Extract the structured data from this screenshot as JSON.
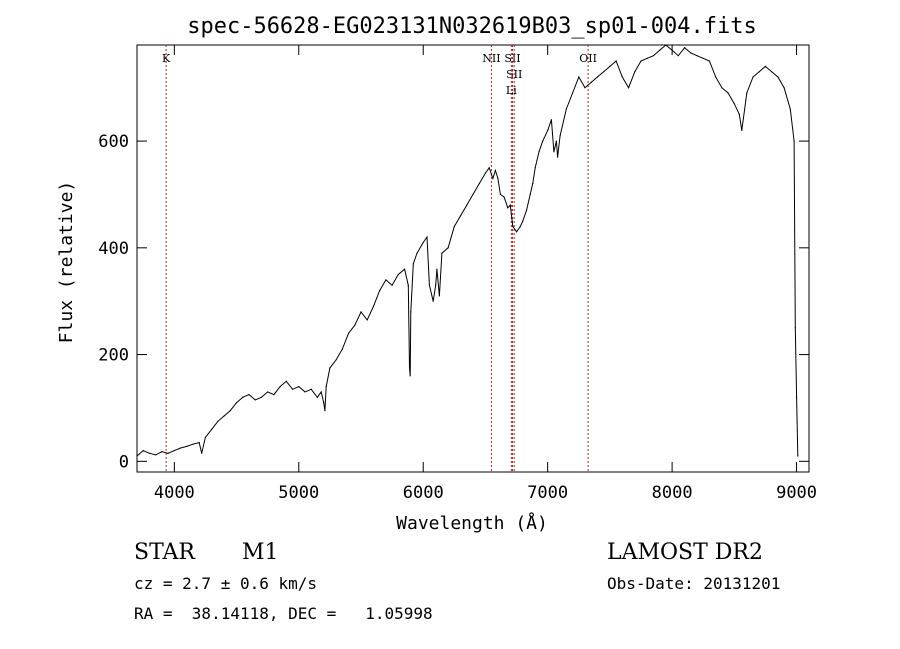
{
  "chart_data": {
    "type": "line",
    "title": "spec-56628-EG023131N032619B03_sp01-004.fits",
    "xlabel": "Wavelength (Å)",
    "ylabel": "Flux (relative)",
    "xlim": [
      3700,
      9100
    ],
    "ylim": [
      -20,
      780
    ],
    "x_ticks": [
      4000,
      5000,
      6000,
      7000,
      8000,
      9000
    ],
    "y_ticks": [
      0,
      200,
      400,
      600
    ],
    "grid": false,
    "line_color": "#000000",
    "marker_color": "#b22222",
    "series": [
      {
        "x": [
          3700,
          3750,
          3800,
          3850,
          3900,
          3950,
          4000,
          4050,
          4100,
          4150,
          4200,
          4220,
          4250,
          4300,
          4350,
          4400,
          4450,
          4500,
          4550,
          4600,
          4650,
          4700,
          4750,
          4800,
          4850,
          4900,
          4950,
          5000,
          5050,
          5100,
          5150,
          5180,
          5200,
          5210,
          5220,
          5250,
          5300,
          5350,
          5400,
          5450,
          5500,
          5550,
          5600,
          5650,
          5700,
          5750,
          5800,
          5850,
          5880,
          5890,
          5895,
          5900,
          5920,
          5950,
          6000,
          6030,
          6050,
          6080,
          6100,
          6110,
          6130,
          6150,
          6200,
          6250,
          6300,
          6350,
          6400,
          6450,
          6500,
          6530,
          6560,
          6580,
          6600,
          6620,
          6650,
          6680,
          6700,
          6720,
          6750,
          6780,
          6800,
          6830,
          6860,
          6880,
          6900,
          6930,
          6960,
          7000,
          7030,
          7050,
          7070,
          7080,
          7100,
          7150,
          7200,
          7250,
          7300,
          7350,
          7400,
          7450,
          7500,
          7550,
          7600,
          7650,
          7700,
          7750,
          7800,
          7850,
          7900,
          7950,
          8000,
          8050,
          8100,
          8150,
          8200,
          8250,
          8300,
          8350,
          8400,
          8450,
          8500,
          8540,
          8560,
          8600,
          8650,
          8700,
          8750,
          8800,
          8850,
          8900,
          8950,
          8980,
          8990,
          9000,
          9010
        ],
        "y": [
          10,
          20,
          15,
          12,
          18,
          15,
          20,
          25,
          28,
          32,
          35,
          15,
          45,
          60,
          75,
          85,
          95,
          110,
          120,
          125,
          115,
          120,
          130,
          125,
          140,
          150,
          135,
          140,
          130,
          135,
          120,
          130,
          110,
          95,
          140,
          175,
          190,
          210,
          240,
          255,
          280,
          265,
          290,
          320,
          340,
          330,
          350,
          360,
          330,
          175,
          160,
          280,
          370,
          390,
          410,
          420,
          330,
          300,
          330,
          360,
          310,
          390,
          400,
          440,
          460,
          480,
          500,
          520,
          540,
          550,
          530,
          545,
          530,
          500,
          495,
          475,
          480,
          440,
          430,
          440,
          450,
          470,
          500,
          520,
          550,
          580,
          600,
          620,
          640,
          580,
          600,
          570,
          610,
          660,
          690,
          720,
          700,
          710,
          720,
          730,
          740,
          750,
          720,
          700,
          730,
          750,
          755,
          760,
          770,
          780,
          770,
          760,
          775,
          765,
          760,
          755,
          750,
          720,
          700,
          690,
          670,
          650,
          620,
          690,
          720,
          730,
          740,
          730,
          720,
          700,
          660,
          600,
          250,
          120,
          10
        ]
      }
    ],
    "line_markers": [
      {
        "label": "K",
        "x": 3934
      },
      {
        "label": "NII",
        "x": 6548
      },
      {
        "label": "SII",
        "x": 6717
      },
      {
        "label": "SII",
        "x": 6731
      },
      {
        "label": "Li",
        "x": 6708
      },
      {
        "label": "OII",
        "x": 7325
      }
    ]
  },
  "info": {
    "object_class": "STAR",
    "subclass": "M1",
    "survey": "LAMOST DR2",
    "cz": "cz = 2.7 ± 0.6 km/s",
    "obs_date": "Obs-Date: 20131201",
    "coords": "RA =  38.14118, DEC =   1.05998"
  }
}
